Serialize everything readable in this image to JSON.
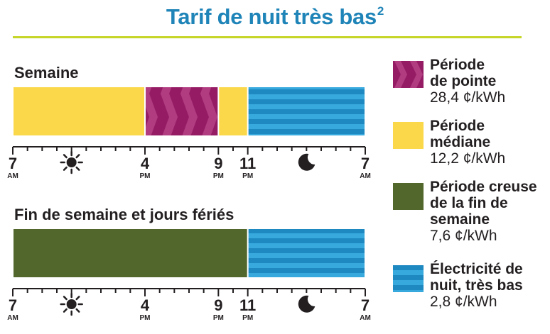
{
  "title": "Tarif de nuit très bas",
  "title_superscript": "2",
  "colors": {
    "title": "#1f84b8",
    "rule": "#c5d628",
    "pointe": "#9b2069",
    "mediane": "#fbd84a",
    "creuse": "#51672c",
    "nuit": "#1f8fc5"
  },
  "chart_data": {
    "type": "timeline",
    "x_unit": "hours",
    "x_range": [
      "7 AM",
      "7 AM"
    ],
    "rows": [
      {
        "label": "Semaine",
        "segments": [
          {
            "start": "7 AM",
            "end": "4 PM",
            "period": "mediane"
          },
          {
            "start": "4 PM",
            "end": "9 PM",
            "period": "pointe"
          },
          {
            "start": "9 PM",
            "end": "11 PM",
            "period": "mediane"
          },
          {
            "start": "11 PM",
            "end": "7 AM",
            "period": "nuit"
          }
        ]
      },
      {
        "label": "Fin de semaine et jours fériés",
        "segments": [
          {
            "start": "7 AM",
            "end": "11 PM",
            "period": "creuse"
          },
          {
            "start": "11 PM",
            "end": "7 AM",
            "period": "nuit"
          }
        ]
      }
    ],
    "axis_labels": [
      {
        "hour": 0,
        "number": "7",
        "suffix": "AM"
      },
      {
        "hour": 9,
        "number": "4",
        "suffix": "PM"
      },
      {
        "hour": 14,
        "number": "9",
        "suffix": "PM"
      },
      {
        "hour": 16,
        "number": "11",
        "suffix": "PM"
      },
      {
        "hour": 24,
        "number": "7",
        "suffix": "AM"
      }
    ],
    "day_icon": "sun-icon",
    "night_icon": "moon-icon",
    "legend": [
      {
        "key": "pointe",
        "label": "Période\nde pointe",
        "price": "28,4 ¢/kWh",
        "pattern": "chevron"
      },
      {
        "key": "mediane",
        "label": "Période\nmédiane",
        "price": "12,2 ¢/kWh",
        "pattern": "solid"
      },
      {
        "key": "creuse",
        "label": "Période creuse\nde la fin de\nsemaine",
        "price": "7,6 ¢/kWh",
        "pattern": "solid"
      },
      {
        "key": "nuit",
        "label": "Électricité de\nnuit, très bas",
        "price": "2,8 ¢/kWh",
        "pattern": "stripes"
      }
    ]
  }
}
